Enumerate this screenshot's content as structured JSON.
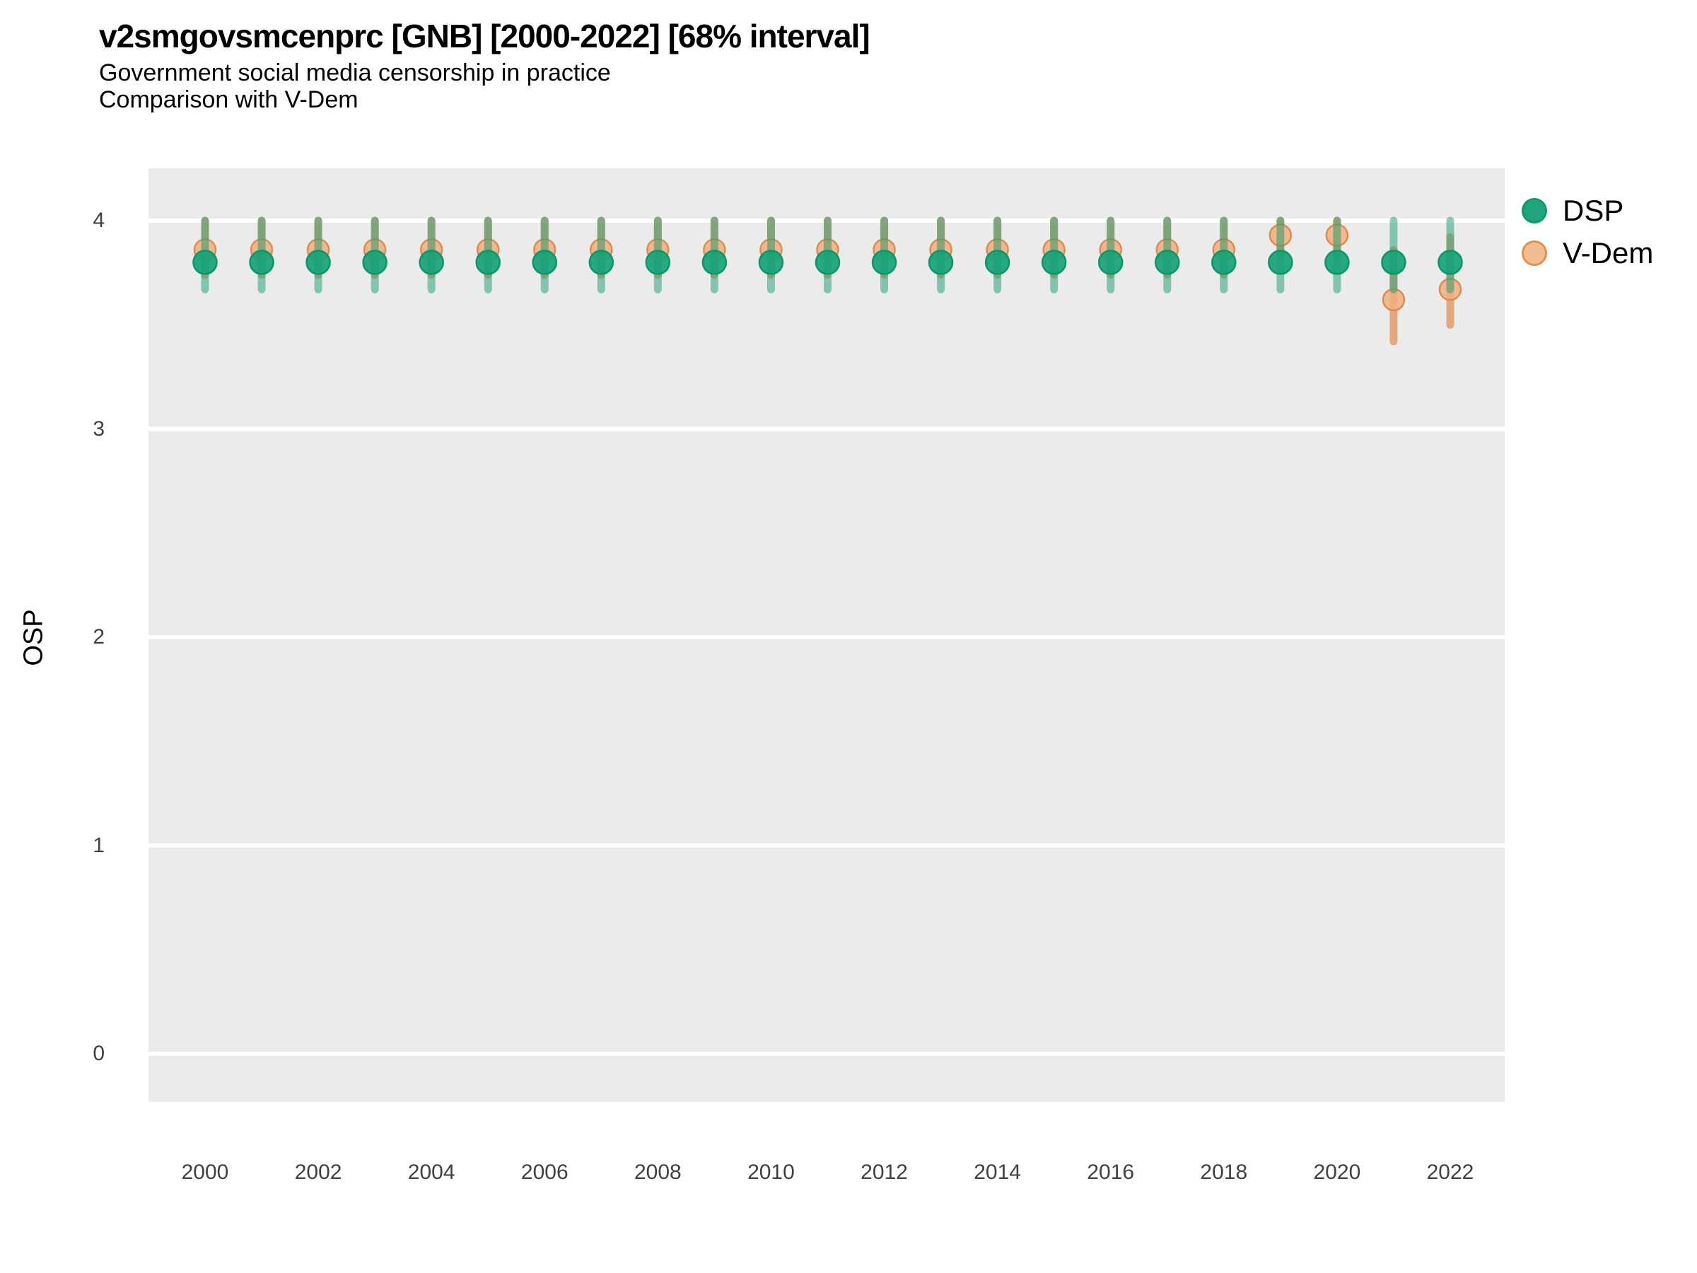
{
  "header": {
    "title": "v2smgovsmcenprc [GNB] [2000-2022] [68% interval]",
    "subtitle1": "Government social media censorship in practice",
    "subtitle2": "Comparison with V-Dem"
  },
  "axes": {
    "y_title": "OSP",
    "y_tick_labels": [
      "0",
      "1",
      "2",
      "3",
      "4"
    ],
    "x_tick_labels": [
      "2000",
      "2002",
      "2004",
      "2006",
      "2008",
      "2010",
      "2012",
      "2014",
      "2016",
      "2018",
      "2020",
      "2022"
    ]
  },
  "legend": {
    "items": [
      {
        "label": "DSP",
        "fill": "#1fa47c",
        "stroke": "#12996f"
      },
      {
        "label": "V-Dem",
        "fill": "#f3bd92",
        "stroke": "#e0914f"
      }
    ]
  },
  "colors": {
    "panel_background": "#ebebeb",
    "gridline": "#ffffff",
    "dsp_green": "#16a277",
    "vdem_orange": "#e08c50"
  },
  "chart_data": {
    "type": "pointrange",
    "title": "v2smgovsmcenprc [GNB] [2000-2022] [68% interval]",
    "subtitle": [
      "Government social media censorship in practice",
      "Comparison with V-Dem"
    ],
    "xlabel": "",
    "ylabel": "OSP",
    "x": [
      2000,
      2001,
      2002,
      2003,
      2004,
      2005,
      2006,
      2007,
      2008,
      2009,
      2010,
      2011,
      2012,
      2013,
      2014,
      2015,
      2016,
      2017,
      2018,
      2019,
      2020,
      2021,
      2022
    ],
    "xticks": [
      2000,
      2002,
      2004,
      2006,
      2008,
      2010,
      2012,
      2014,
      2016,
      2018,
      2020,
      2022
    ],
    "yticks": [
      0,
      1,
      2,
      3,
      4
    ],
    "ylim_shown": [
      -0.23,
      4.25
    ],
    "grid": "horizontal-major-only",
    "legend_position": "right",
    "interval_level": "68%",
    "series": [
      {
        "name": "DSP",
        "point_fill": "#16a277",
        "point_stroke": "#0a9669",
        "point_opacity": 0.92,
        "point_radius": 16.5,
        "bar_color": "#17a076",
        "bar_opacity": 0.5,
        "values": [
          3.8,
          3.8,
          3.8,
          3.8,
          3.8,
          3.8,
          3.8,
          3.8,
          3.8,
          3.8,
          3.8,
          3.8,
          3.8,
          3.8,
          3.8,
          3.8,
          3.8,
          3.8,
          3.8,
          3.8,
          3.8,
          3.8,
          3.8
        ],
        "lower": [
          3.67,
          3.67,
          3.67,
          3.67,
          3.67,
          3.67,
          3.67,
          3.67,
          3.67,
          3.67,
          3.67,
          3.67,
          3.67,
          3.67,
          3.67,
          3.67,
          3.67,
          3.67,
          3.67,
          3.67,
          3.67,
          3.67,
          3.67
        ],
        "upper": [
          4.0,
          4.0,
          4.0,
          4.0,
          4.0,
          4.0,
          4.0,
          4.0,
          4.0,
          4.0,
          4.0,
          4.0,
          4.0,
          4.0,
          4.0,
          4.0,
          4.0,
          4.0,
          4.0,
          4.0,
          4.0,
          4.0,
          4.0
        ]
      },
      {
        "name": "V-Dem",
        "point_fill": "#f0af80",
        "point_stroke": "#de8c4e",
        "point_opacity": 0.85,
        "point_radius": 15,
        "bar_color": "#e08c50",
        "bar_opacity": 0.7,
        "values": [
          3.86,
          3.86,
          3.86,
          3.86,
          3.86,
          3.86,
          3.86,
          3.86,
          3.86,
          3.86,
          3.86,
          3.86,
          3.86,
          3.86,
          3.86,
          3.86,
          3.86,
          3.86,
          3.86,
          3.93,
          3.93,
          3.62,
          3.67
        ],
        "lower": [
          3.74,
          3.74,
          3.74,
          3.74,
          3.74,
          3.74,
          3.74,
          3.74,
          3.74,
          3.74,
          3.74,
          3.74,
          3.74,
          3.74,
          3.74,
          3.74,
          3.74,
          3.74,
          3.74,
          3.85,
          3.85,
          3.42,
          3.5
        ],
        "upper": [
          4.0,
          4.0,
          4.0,
          4.0,
          4.0,
          4.0,
          4.0,
          4.0,
          4.0,
          4.0,
          4.0,
          4.0,
          4.0,
          4.0,
          4.0,
          4.0,
          4.0,
          4.0,
          4.0,
          4.0,
          4.0,
          3.86,
          3.92
        ]
      }
    ]
  }
}
